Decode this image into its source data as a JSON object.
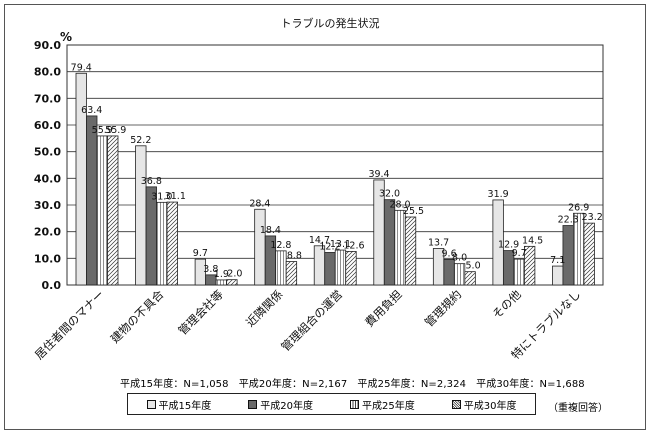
{
  "chart_data": {
    "type": "bar",
    "title": "トラブルの発生状況",
    "ylabel": "%",
    "ylim": [
      0,
      90
    ],
    "yticks": [
      "0.0",
      "10.0",
      "20.0",
      "30.0",
      "40.0",
      "50.0",
      "60.0",
      "70.0",
      "80.0",
      "90.0"
    ],
    "grid": true,
    "legend_position": "bottom",
    "categories": [
      "居住者間のマナー",
      "建物の不具合",
      "管理会社等",
      "近隣関係",
      "管理組合の運営",
      "費用負担",
      "管理規約",
      "その他",
      "特にトラブルなし"
    ],
    "series": [
      {
        "name": "平成15年度",
        "values": [
          79.4,
          52.2,
          9.7,
          28.4,
          14.7,
          39.4,
          13.7,
          31.9,
          7.1
        ],
        "labels": [
          "79.4",
          "52.2",
          "9.7",
          "28.4",
          "14.7",
          "39.4",
          "13.7",
          "31.9",
          "7.1"
        ]
      },
      {
        "name": "平成20年度",
        "values": [
          63.4,
          36.8,
          3.8,
          18.4,
          12.2,
          32.0,
          9.6,
          12.9,
          22.3
        ],
        "labels": [
          "63.4",
          "36.8",
          "3.8",
          "18.4",
          "12.2",
          "32.0",
          "9.6",
          "12.9",
          "22.3"
        ]
      },
      {
        "name": "平成25年度",
        "values": [
          55.9,
          31.0,
          1.9,
          12.8,
          13.1,
          28.0,
          8.0,
          9.7,
          26.9
        ],
        "labels": [
          "55.9",
          "31.0",
          "1.9",
          "12.8",
          "13.1",
          "28.0",
          "8.0",
          "9.7",
          "26.9"
        ]
      },
      {
        "name": "平成30年度",
        "values": [
          55.9,
          31.1,
          2.0,
          8.8,
          12.6,
          25.5,
          5.0,
          14.5,
          23.2
        ],
        "labels": [
          "55.9",
          "31.1",
          "2.0",
          "8.8",
          "12.6",
          "25.5",
          "5.0",
          "14.5",
          "23.2"
        ]
      }
    ],
    "sample_sizes": "平成15年度：N=1,058　平成20年度：N=2,167　平成25年度：N=2,324　平成30年度：N=1,688",
    "note": "（重複回答）"
  },
  "colors": {
    "series_fills": [
      "#e6e6e6",
      "#6a6a6a",
      "#ffffff",
      "#ffffff"
    ],
    "series_patterns": [
      "solid",
      "solid",
      "hatch-vertical",
      "hatch-diagonal"
    ]
  }
}
